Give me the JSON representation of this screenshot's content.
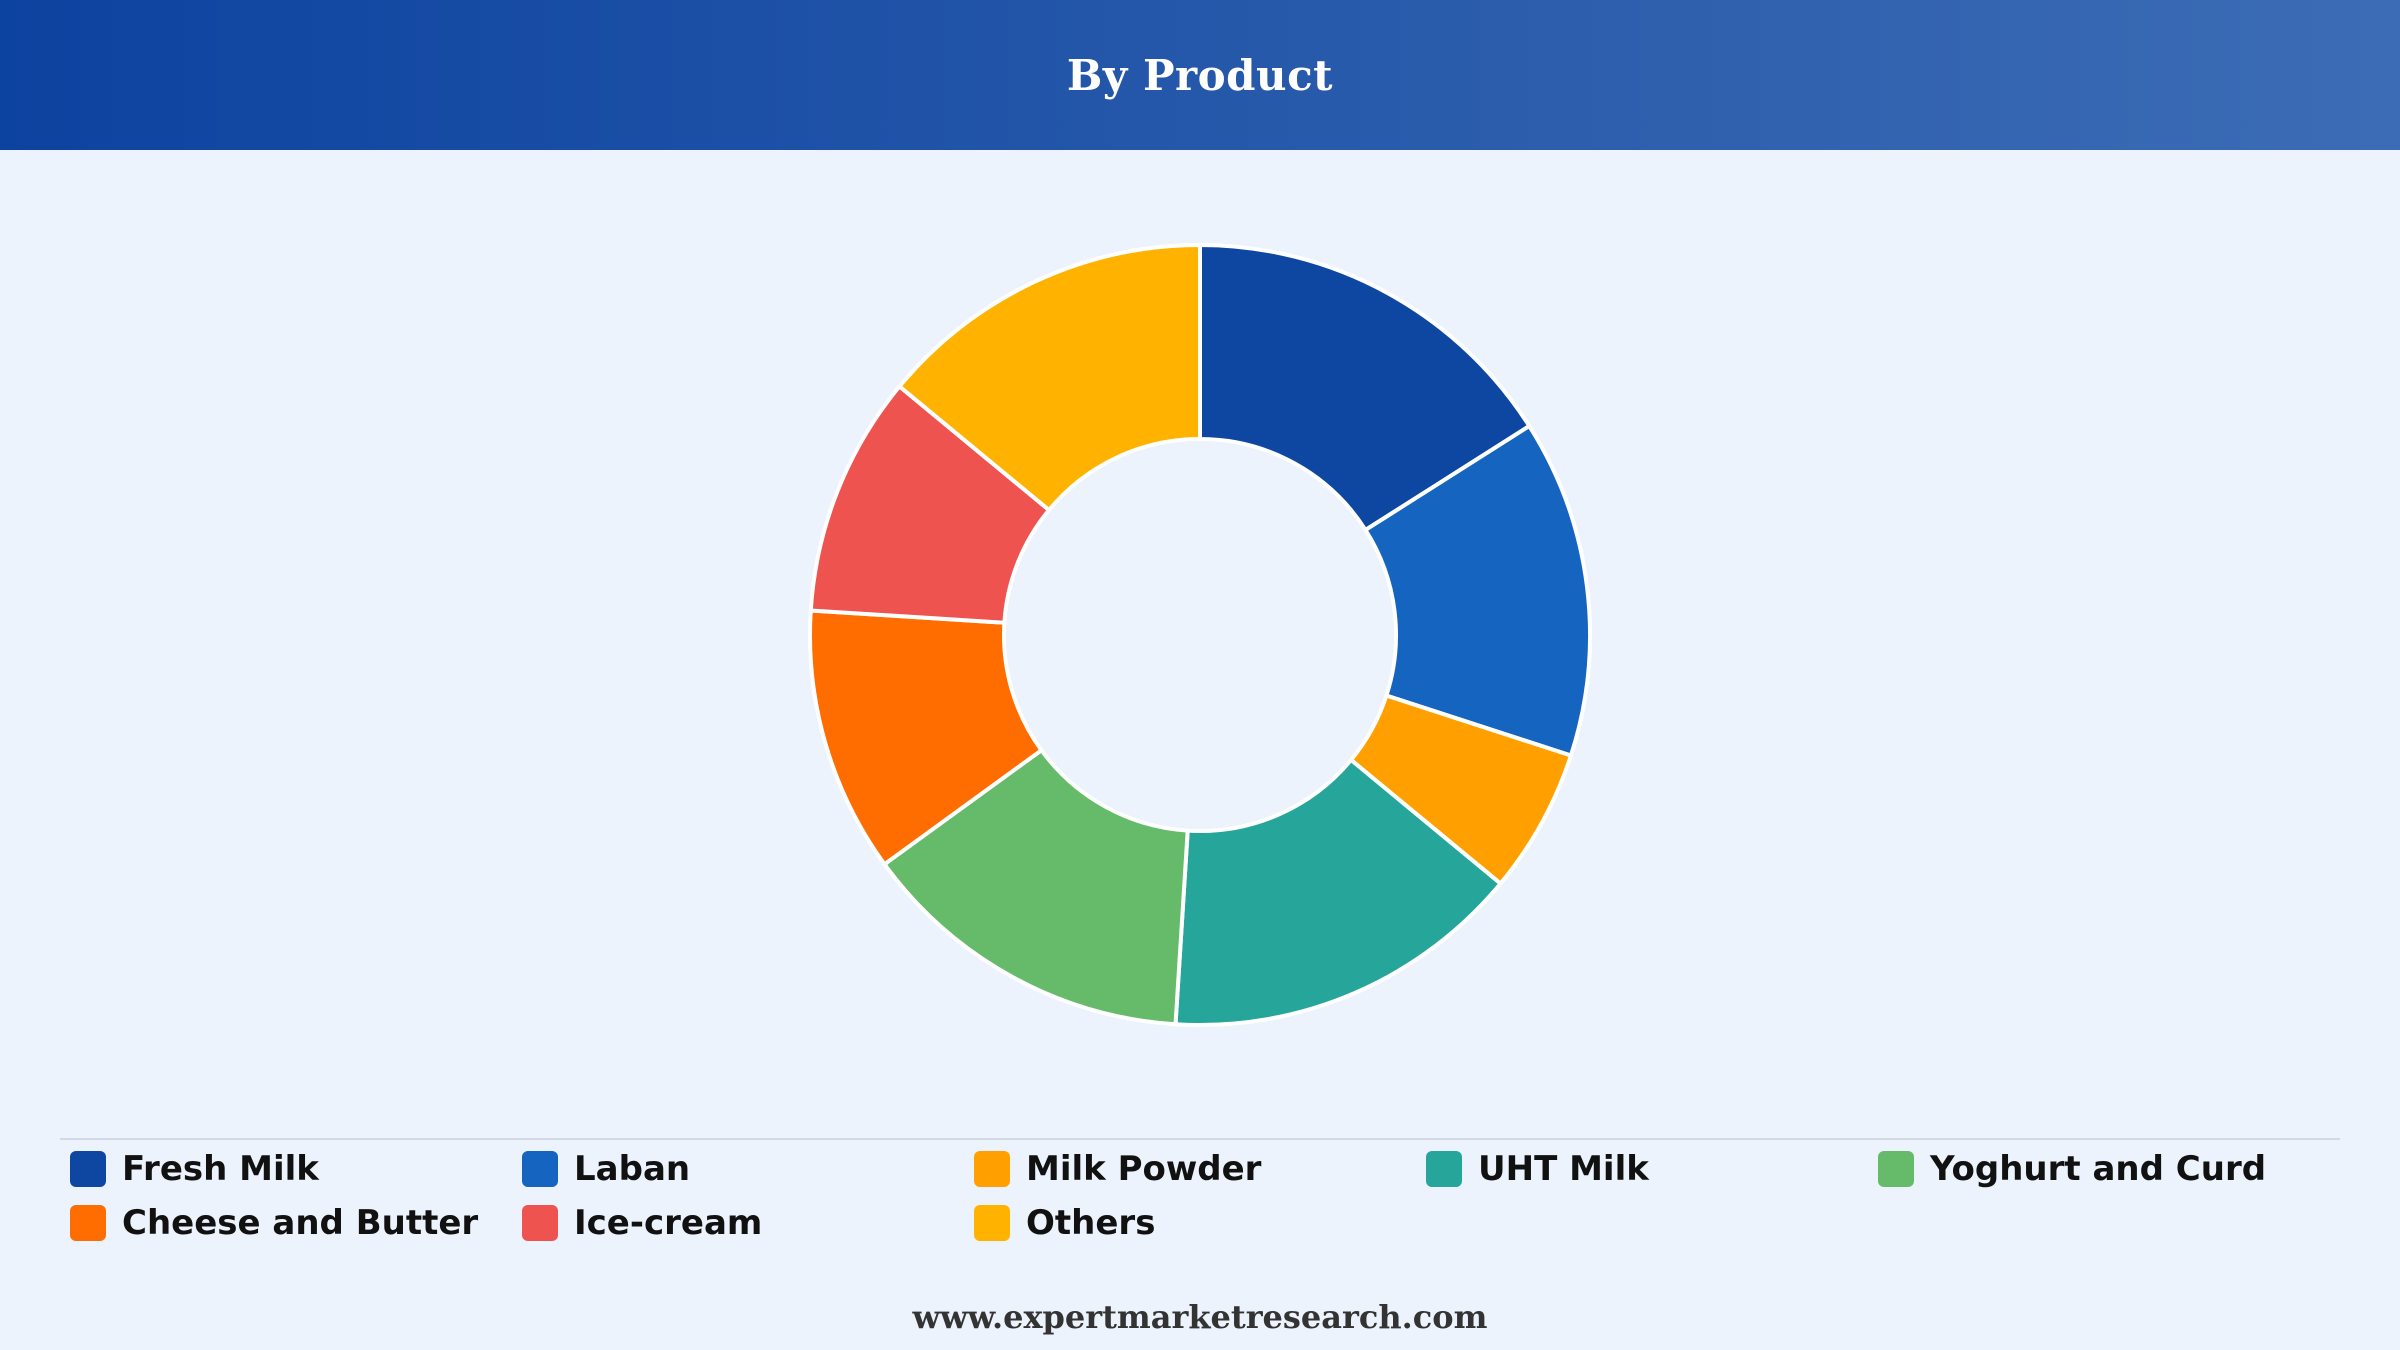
{
  "chart_data": {
    "type": "pie",
    "title": "By Product",
    "donut": true,
    "categories": [
      "Fresh Milk",
      "Laban",
      "Milk Powder",
      "UHT Milk",
      "Yoghurt and Curd",
      "Cheese and Butter",
      "Ice-cream",
      "Others"
    ],
    "values": [
      16,
      14,
      6,
      15,
      14,
      11,
      10,
      14
    ],
    "colors": [
      "#0d47a1",
      "#1565c0",
      "#ffa000",
      "#26a69a",
      "#66bb6a",
      "#ff6d00",
      "#ef5350",
      "#ffb300"
    ],
    "legend_position": "bottom"
  },
  "footer": {
    "source": "www.expertmarketresearch.com"
  }
}
